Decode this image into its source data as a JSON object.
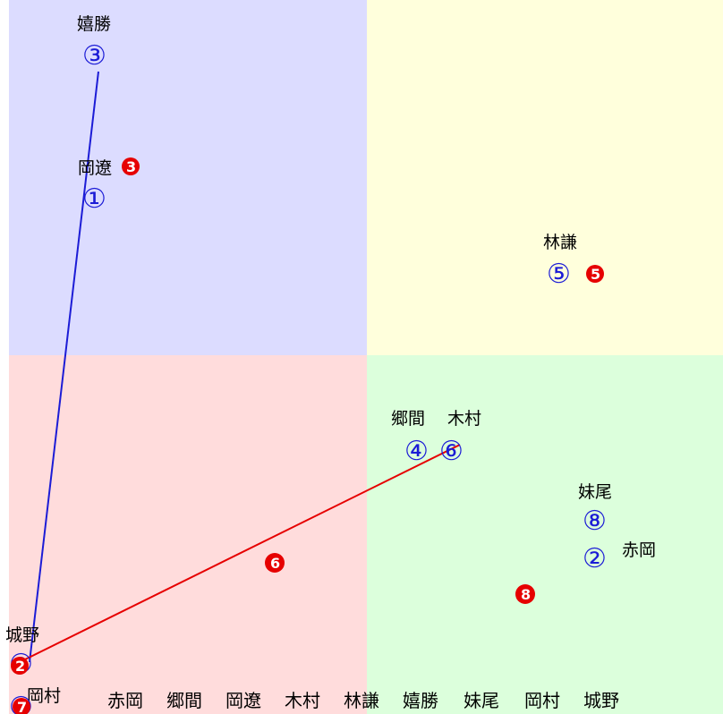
{
  "diagram": {
    "title": "",
    "quadrant_colors": {
      "top_left": "#dcdcff",
      "top_right": "#ffffdc",
      "bottom_left": "#ffdcdc",
      "bottom_right": "#dcffdc"
    },
    "blue_color": "#1c1cd6",
    "red_color": "#e60000",
    "nodes": [
      {
        "id": 1,
        "name": "岡遼",
        "symbol": "①"
      },
      {
        "id": 2,
        "name": "赤岡",
        "symbol": "②"
      },
      {
        "id": 3,
        "name": "嬉勝",
        "symbol": "③"
      },
      {
        "id": 4,
        "name": "郷間",
        "symbol": "④"
      },
      {
        "id": 5,
        "name": "林謙",
        "symbol": "⑤"
      },
      {
        "id": 6,
        "name": "木村",
        "symbol": "⑥"
      },
      {
        "id": 7,
        "name": "岡村",
        "symbol": "⑦"
      },
      {
        "id": 8,
        "name": "妹尾",
        "symbol": "⑧"
      },
      {
        "id": 9,
        "name": "城野",
        "symbol": "⑨"
      }
    ],
    "red_markers": [
      "❸",
      "❺",
      "❻",
      "❽",
      "❷",
      "❼"
    ],
    "bottom_names": [
      "赤岡",
      "郷間",
      "岡遼",
      "木村",
      "林謙",
      "嬉勝",
      "妹尾",
      "岡村",
      "城野"
    ]
  }
}
